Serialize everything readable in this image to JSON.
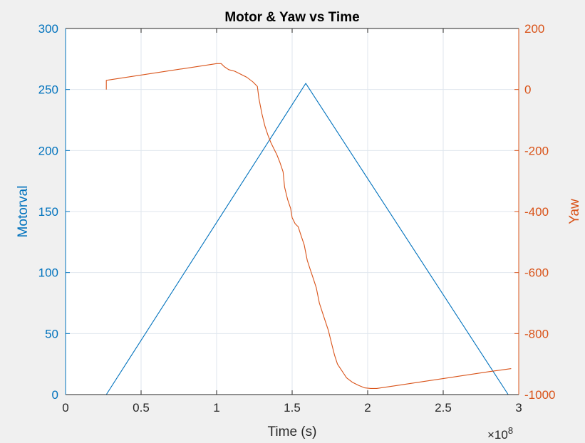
{
  "chart_data": {
    "type": "line",
    "title": "Motor & Yaw vs Time",
    "xlabel": "Time (s)",
    "x_exponent_label": "×10",
    "x_exponent_power": "8",
    "x_scale": 100000000,
    "xlim": [
      0,
      3
    ],
    "x_ticks": [
      "0",
      "0.5",
      "1",
      "1.5",
      "2",
      "2.5",
      "3"
    ],
    "grid": true,
    "left_axis": {
      "label": "Motorval",
      "color": "#0072bd",
      "ylim": [
        0,
        300
      ],
      "ticks": [
        "0",
        "50",
        "100",
        "150",
        "200",
        "250",
        "300"
      ]
    },
    "right_axis": {
      "label": "Yaw",
      "color": "#d95319",
      "ylim": [
        -1000,
        200
      ],
      "ticks": [
        "-1000",
        "-800",
        "-600",
        "-400",
        "-200",
        "0",
        "200"
      ]
    },
    "series": [
      {
        "name": "Motorval",
        "axis": "left",
        "color": "#0072bd",
        "x": [
          0.27,
          1.59,
          2.93
        ],
        "y": [
          0,
          255,
          0
        ]
      },
      {
        "name": "Yaw",
        "axis": "right",
        "color": "#d95319",
        "x": [
          0.27,
          0.27,
          1.0,
          1.03,
          1.05,
          1.08,
          1.12,
          1.16,
          1.2,
          1.24,
          1.27,
          1.28,
          1.3,
          1.32,
          1.34,
          1.36,
          1.38,
          1.4,
          1.42,
          1.44,
          1.45,
          1.47,
          1.49,
          1.5,
          1.52,
          1.54,
          1.56,
          1.58,
          1.6,
          1.62,
          1.64,
          1.66,
          1.68,
          1.7,
          1.72,
          1.74,
          1.76,
          1.78,
          1.8,
          1.82,
          1.84,
          1.86,
          1.9,
          1.94,
          1.98,
          2.02,
          2.06,
          2.2,
          2.4,
          2.6,
          2.8,
          2.95
        ],
        "y": [
          0,
          30,
          85,
          85,
          75,
          65,
          60,
          50,
          40,
          25,
          10,
          -30,
          -80,
          -120,
          -150,
          -175,
          -195,
          -215,
          -240,
          -270,
          -320,
          -360,
          -390,
          -420,
          -440,
          -450,
          -480,
          -510,
          -560,
          -590,
          -620,
          -650,
          -700,
          -730,
          -760,
          -790,
          -830,
          -870,
          -900,
          -915,
          -930,
          -945,
          -960,
          -970,
          -978,
          -980,
          -980,
          -970,
          -955,
          -940,
          -925,
          -915
        ]
      }
    ]
  }
}
